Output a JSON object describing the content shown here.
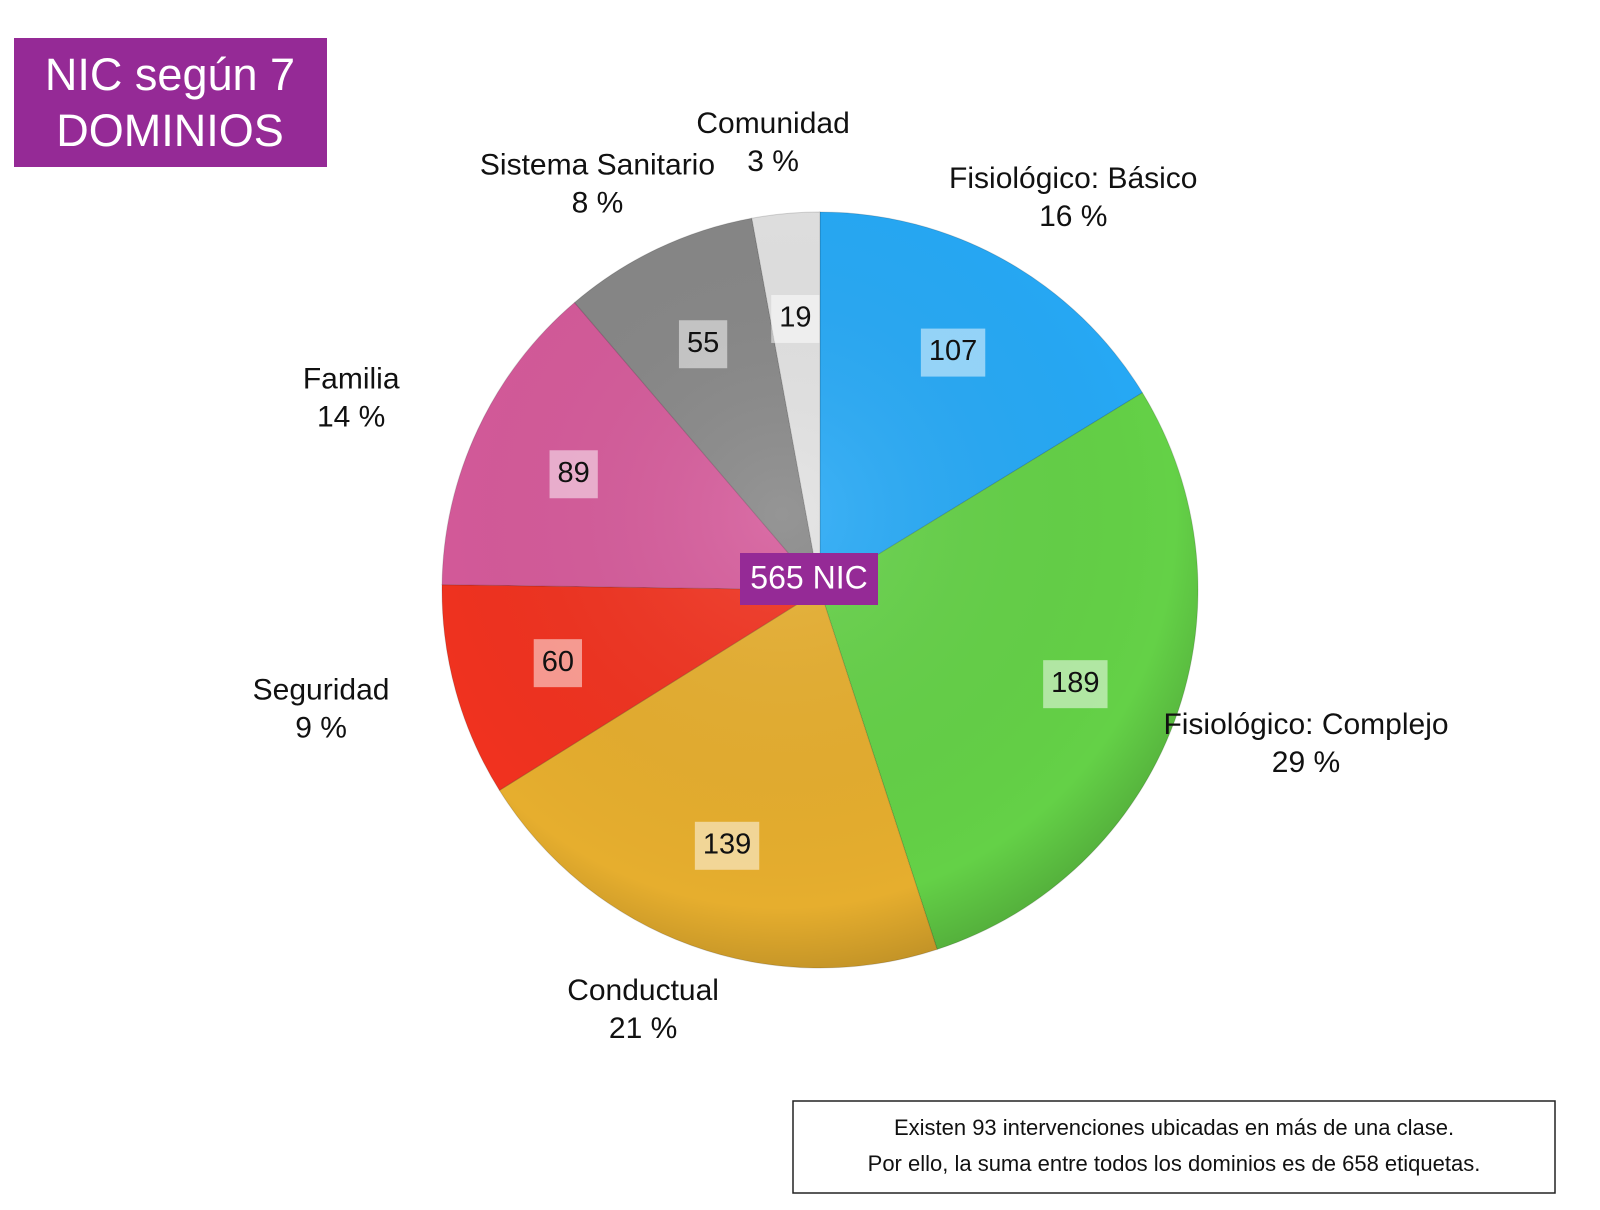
{
  "chart_data": {
    "type": "pie",
    "title": [
      "NIC según 7",
      "DOMINIOS"
    ],
    "center_label": "565 NIC",
    "categories": [
      "Fisiológico: Básico",
      "Fisiológico: Complejo",
      "Conductual",
      "Seguridad",
      "Familia",
      "Sistema Sanitario",
      "Comunidad"
    ],
    "values": [
      107,
      189,
      139,
      60,
      89,
      55,
      19
    ],
    "percent_labels": [
      "16 %",
      "29 %",
      "21 %",
      "9 %",
      "14 %",
      "8 %",
      "3 %"
    ],
    "colors": [
      "#26a9f6",
      "#64d147",
      "#e6ae2e",
      "#f1321f",
      "#d55a9a",
      "#878787",
      "#e2e2e2"
    ],
    "note": [
      "Existen 93 intervenciones ubicadas en más de una clase.",
      "Por ello, la suma entre todos los dominios es de 658 etiquetas."
    ]
  }
}
